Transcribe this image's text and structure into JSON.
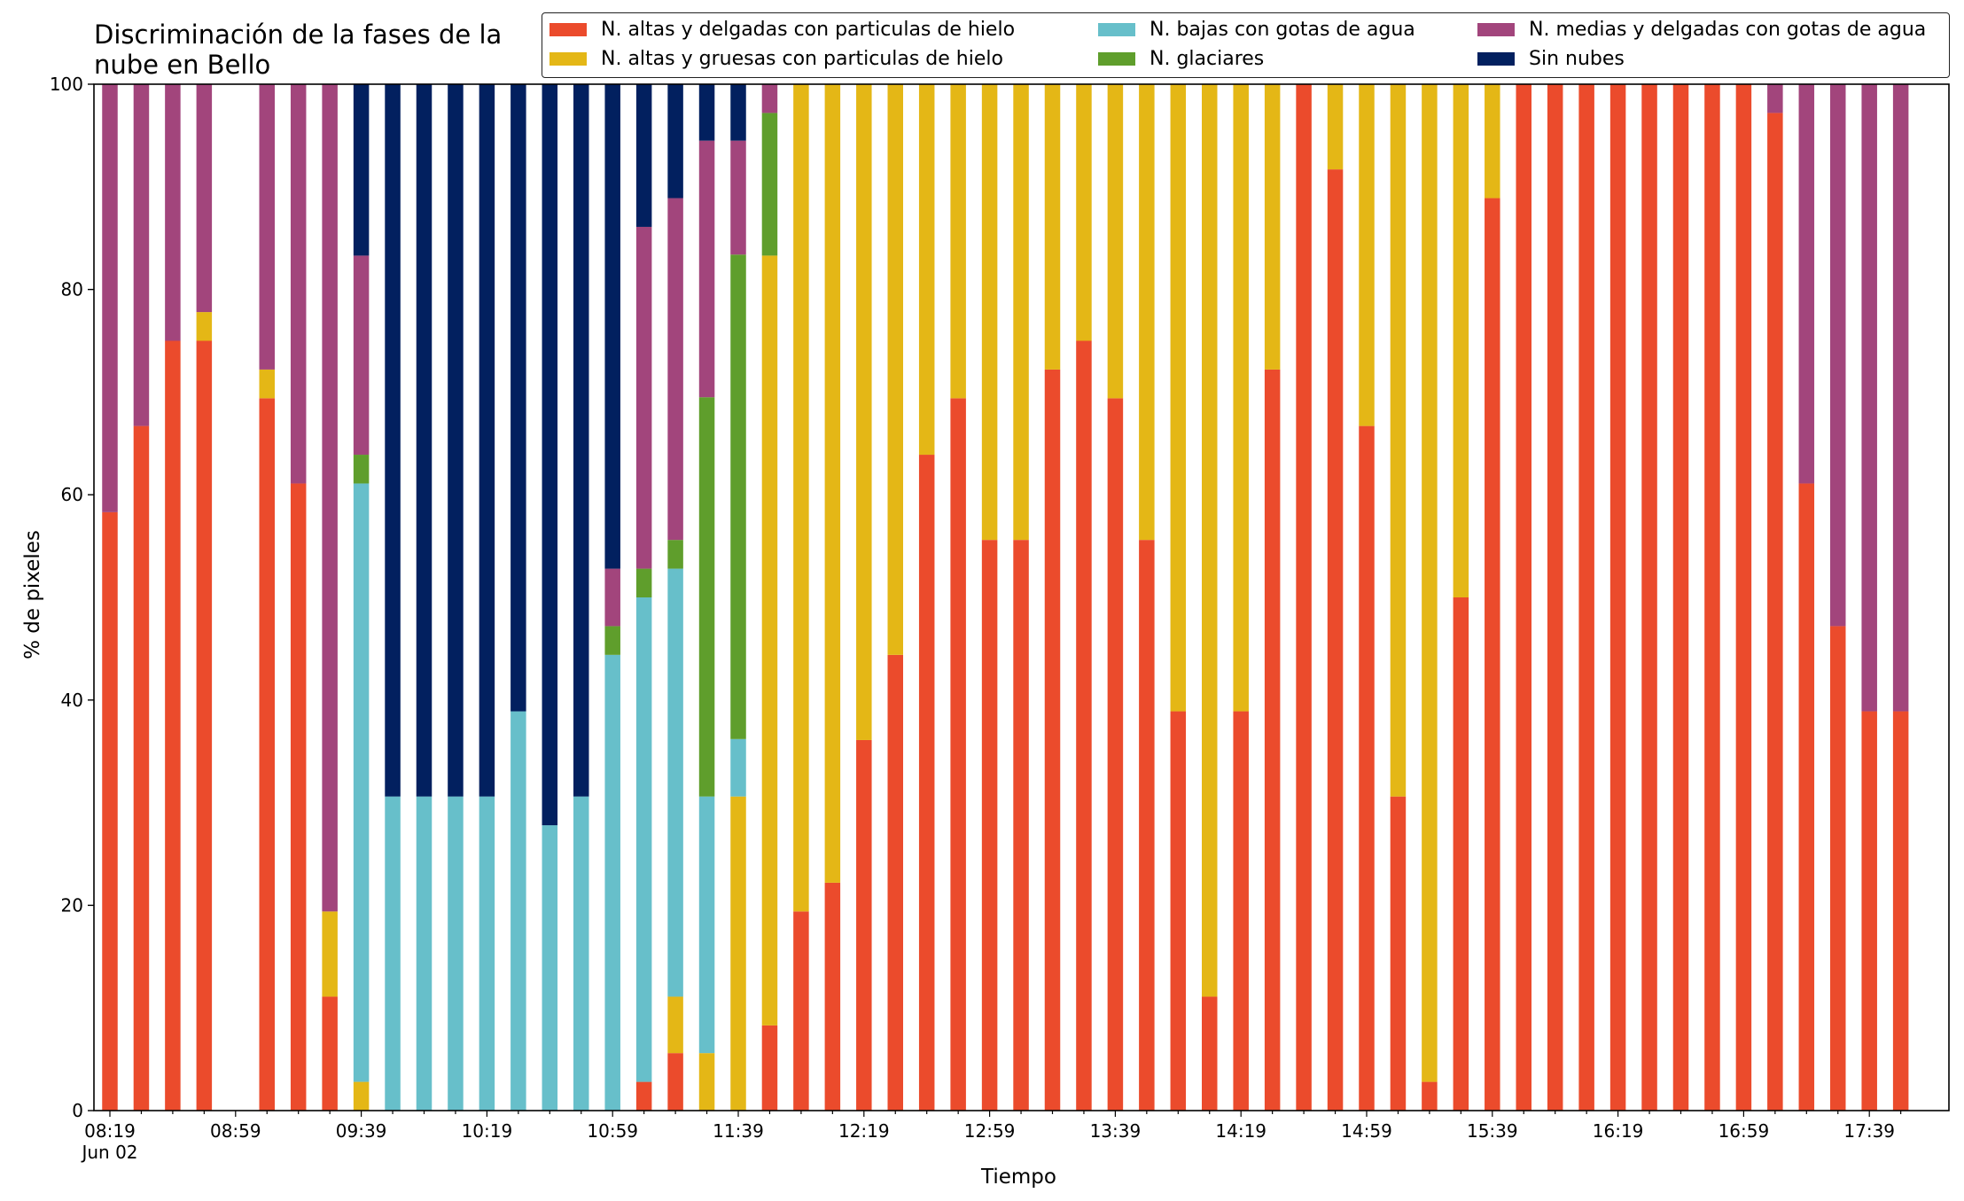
{
  "chart_data": {
    "type": "bar",
    "stacked": true,
    "title": "Discriminación de la fases de la\nnube en Bello",
    "xlabel": "Tiempo",
    "ylabel": "% de pixeles",
    "ylim": [
      0,
      100
    ],
    "yticks": [
      "0",
      "20",
      "40",
      "60",
      "80",
      "100"
    ],
    "xticks": [
      "08:19",
      "08:59",
      "09:39",
      "10:19",
      "10:59",
      "11:39",
      "12:19",
      "12:59",
      "13:39",
      "14:19",
      "14:59",
      "15:39",
      "16:19",
      "16:59",
      "17:39"
    ],
    "xtick_sublabel": "Jun 02",
    "grid": false,
    "legend_position": "top-right",
    "series": [
      {
        "name": "N. altas y delgadas con particulas de hielo",
        "color": "#EB4B2C",
        "values": [
          58.3,
          66.7,
          75,
          75,
          0,
          69.4,
          61.1,
          11.1,
          0,
          0,
          0,
          0,
          0,
          0,
          0,
          0,
          0,
          2.8,
          5.6,
          0,
          0,
          8.3,
          19.4,
          22.2,
          36.1,
          44.4,
          63.9,
          69.4,
          55.6,
          55.6,
          72.2,
          75,
          69.4,
          55.6,
          38.9,
          11.1,
          38.9,
          72.2,
          100,
          91.7,
          66.7,
          30.6,
          2.8,
          50,
          88.9,
          100,
          100,
          100,
          100,
          100,
          100,
          100,
          100,
          97.2,
          61.1,
          47.2,
          38.9,
          38.9
        ]
      },
      {
        "name": "N. altas y gruesas con particulas de hielo",
        "color": "#E4B716",
        "values": [
          0,
          0,
          0,
          2.8,
          0,
          2.8,
          0,
          8.3,
          2.8,
          0,
          0,
          0,
          0,
          0,
          0,
          0,
          0,
          0,
          5.5,
          5.6,
          30.6,
          75,
          80.6,
          77.8,
          63.9,
          55.6,
          36.1,
          30.6,
          44.4,
          44.4,
          27.8,
          25,
          30.6,
          44.4,
          61.1,
          88.9,
          61.1,
          27.8,
          0,
          8.3,
          33.3,
          69.4,
          97.2,
          50,
          11.1,
          0,
          0,
          0,
          0,
          0,
          0,
          0,
          0,
          0,
          0,
          0,
          0,
          0
        ]
      },
      {
        "name": "N. bajas con gotas de agua",
        "color": "#67BFCA",
        "values": [
          0,
          0,
          0,
          0,
          0,
          0,
          0,
          0,
          58.3,
          30.6,
          30.6,
          30.6,
          30.6,
          38.9,
          27.8,
          30.6,
          44.4,
          47.2,
          41.7,
          25,
          5.6,
          0,
          0,
          0,
          0,
          0,
          0,
          0,
          0,
          0,
          0,
          0,
          0,
          0,
          0,
          0,
          0,
          0,
          0,
          0,
          0,
          0,
          0,
          0,
          0,
          0,
          0,
          0,
          0,
          0,
          0,
          0,
          0,
          0,
          0,
          0,
          0,
          0
        ]
      },
      {
        "name": "N. glaciares",
        "color": "#5F9E2C",
        "values": [
          0,
          0,
          0,
          0,
          0,
          0,
          0,
          0,
          2.8,
          0,
          0,
          0,
          0,
          0,
          0,
          0,
          2.8,
          2.8,
          2.8,
          38.9,
          47.2,
          13.9,
          0,
          0,
          0,
          0,
          0,
          0,
          0,
          0,
          0,
          0,
          0,
          0,
          0,
          0,
          0,
          0,
          0,
          0,
          0,
          0,
          0,
          0,
          0,
          0,
          0,
          0,
          0,
          0,
          0,
          0,
          0,
          0,
          0,
          0,
          0,
          0
        ]
      },
      {
        "name": "N. medias y delgadas con gotas de agua",
        "color": "#A2457C",
        "values": [
          41.7,
          33.3,
          25,
          22.2,
          0,
          27.8,
          38.9,
          80.6,
          19.4,
          0,
          0,
          0,
          0,
          0,
          0,
          0,
          5.6,
          33.3,
          33.3,
          25,
          11.1,
          2.8,
          0,
          0,
          0,
          0,
          0,
          0,
          0,
          0,
          0,
          0,
          0,
          0,
          0,
          0,
          0,
          0,
          0,
          0,
          0,
          0,
          0,
          0,
          0,
          0,
          0,
          0,
          0,
          0,
          0,
          0,
          0,
          2.8,
          38.9,
          52.8,
          61.1,
          61.1
        ]
      },
      {
        "name": "Sin nubes",
        "color": "#02205F",
        "values": [
          0,
          0,
          0,
          0,
          0,
          0,
          0,
          0,
          16.7,
          69.4,
          69.4,
          69.4,
          69.4,
          61.1,
          72.2,
          69.4,
          47.2,
          13.9,
          11.1,
          5.5,
          5.5,
          0,
          0,
          0,
          0,
          0,
          0,
          0,
          0,
          0,
          0,
          0,
          0,
          0,
          0,
          0,
          0,
          0,
          0,
          0,
          0,
          0,
          0,
          0,
          0,
          0,
          0,
          0,
          0,
          0,
          0,
          0,
          0,
          0,
          0,
          0,
          0,
          0
        ]
      }
    ]
  }
}
